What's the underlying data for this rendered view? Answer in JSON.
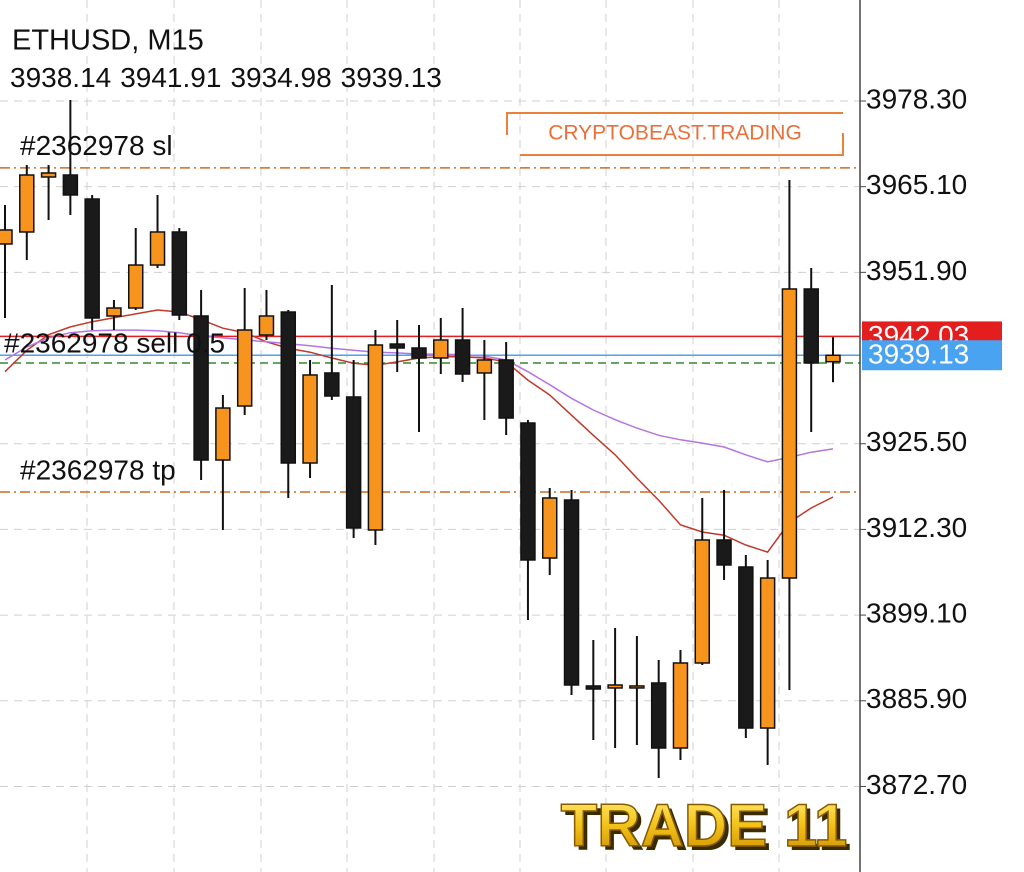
{
  "chart_data": {
    "type": "candlestick",
    "title": "ETHUSD, M15",
    "ylim": [
      3859.52,
      3993.86
    ],
    "yticks": [
      {
        "value": 3978.3,
        "label": "3978.30"
      },
      {
        "value": 3965.1,
        "label": "3965.10"
      },
      {
        "value": 3951.9,
        "label": "3951.90"
      },
      {
        "value": 3925.5,
        "label": "3925.50"
      },
      {
        "value": 3912.3,
        "label": "3912.30"
      },
      {
        "value": 3899.1,
        "label": "3899.10"
      },
      {
        "value": 3885.9,
        "label": "3885.90"
      },
      {
        "value": 3872.7,
        "label": "3872.70"
      }
    ],
    "grid": true,
    "up_color": "#f7941d",
    "down_color": "#1a1a1a",
    "candles": [
      {
        "open": 3956.27,
        "high": 3962.28,
        "low": 3944.87,
        "close": 3958.43
      },
      {
        "open": 3958.12,
        "high": 3968.44,
        "low": 3953.8,
        "close": 3966.9
      },
      {
        "open": 3966.59,
        "high": 3968.44,
        "low": 3959.97,
        "close": 3967.21
      },
      {
        "open": 3966.9,
        "high": 3978.45,
        "low": 3960.74,
        "close": 3963.82
      },
      {
        "open": 3963.2,
        "high": 3963.82,
        "low": 3943.02,
        "close": 3944.87
      },
      {
        "open": 3945.18,
        "high": 3947.64,
        "low": 3943.02,
        "close": 3946.41
      },
      {
        "open": 3946.41,
        "high": 3958.73,
        "low": 3946.1,
        "close": 3953.03
      },
      {
        "open": 3953.03,
        "high": 3963.82,
        "low": 3952.57,
        "close": 3958.12
      },
      {
        "open": 3958.12,
        "high": 3958.73,
        "low": 3944.56,
        "close": 3945.33
      },
      {
        "open": 3945.18,
        "high": 3949.18,
        "low": 3919.91,
        "close": 3922.99
      },
      {
        "open": 3922.99,
        "high": 3933.01,
        "low": 3912.21,
        "close": 3931.0
      },
      {
        "open": 3931.31,
        "high": 3949.49,
        "low": 3929.93,
        "close": 3943.02
      },
      {
        "open": 3942.25,
        "high": 3949.18,
        "low": 3941.48,
        "close": 3945.18
      },
      {
        "open": 3945.79,
        "high": 3946.1,
        "low": 3917.14,
        "close": 3922.53
      },
      {
        "open": 3922.53,
        "high": 3938.4,
        "low": 3920.22,
        "close": 3936.09
      },
      {
        "open": 3936.4,
        "high": 3949.95,
        "low": 3932.24,
        "close": 3932.85
      },
      {
        "open": 3932.7,
        "high": 3938.4,
        "low": 3910.98,
        "close": 3912.52
      },
      {
        "open": 3912.21,
        "high": 3943.02,
        "low": 3909.9,
        "close": 3940.71
      },
      {
        "open": 3940.86,
        "high": 3944.56,
        "low": 3936.55,
        "close": 3940.25
      },
      {
        "open": 3940.25,
        "high": 3943.79,
        "low": 3927.31,
        "close": 3938.71
      },
      {
        "open": 3938.71,
        "high": 3944.87,
        "low": 3936.24,
        "close": 3941.48
      },
      {
        "open": 3941.48,
        "high": 3946.41,
        "low": 3935.01,
        "close": 3936.24
      },
      {
        "open": 3936.4,
        "high": 3941.48,
        "low": 3929.15,
        "close": 3938.4
      },
      {
        "open": 3938.4,
        "high": 3941.17,
        "low": 3926.84,
        "close": 3929.46
      },
      {
        "open": 3928.69,
        "high": 3929.15,
        "low": 3898.34,
        "close": 3907.59
      },
      {
        "open": 3907.89,
        "high": 3918.68,
        "low": 3905.28,
        "close": 3917.14
      },
      {
        "open": 3916.83,
        "high": 3918.37,
        "low": 3886.79,
        "close": 3888.33
      },
      {
        "open": 3888.18,
        "high": 3895.26,
        "low": 3879.86,
        "close": 3887.71
      },
      {
        "open": 3887.87,
        "high": 3897.11,
        "low": 3878.62,
        "close": 3888.33
      },
      {
        "open": 3888.18,
        "high": 3895.88,
        "low": 3879.09,
        "close": 3888.18
      },
      {
        "open": 3888.64,
        "high": 3892.18,
        "low": 3874.0,
        "close": 3878.62
      },
      {
        "open": 3878.62,
        "high": 3893.72,
        "low": 3876.77,
        "close": 3891.72
      },
      {
        "open": 3891.72,
        "high": 3917.14,
        "low": 3891.41,
        "close": 3910.67
      },
      {
        "open": 3910.67,
        "high": 3918.37,
        "low": 3904.51,
        "close": 3906.82
      },
      {
        "open": 3906.51,
        "high": 3908.36,
        "low": 3880.16,
        "close": 3881.7
      },
      {
        "open": 3881.7,
        "high": 3907.59,
        "low": 3876.0,
        "close": 3904.81
      },
      {
        "open": 3904.81,
        "high": 3966.13,
        "low": 3887.56,
        "close": 3949.34
      },
      {
        "open": 3949.34,
        "high": 3952.57,
        "low": 3927.31,
        "close": 3937.94
      },
      {
        "open": 3938.14,
        "high": 3941.91,
        "low": 3934.98,
        "close": 3939.13
      }
    ],
    "series": [
      {
        "color": "#c0392b",
        "values": [
          3936.6,
          3939.9,
          3942.3,
          3943.5,
          3944.3,
          3944.9,
          3945.5,
          3946.1,
          3945.8,
          3944.6,
          3943.3,
          3942.6,
          3941.2,
          3940.2,
          3939.6,
          3938.7,
          3937.9,
          3937.6,
          3938.1,
          3938.7,
          3938.9,
          3938.9,
          3938.7,
          3938.1,
          3935.3,
          3933.0,
          3929.9,
          3926.8,
          3923.8,
          3920.2,
          3916.8,
          3913.0,
          3911.9,
          3911.4,
          3909.9,
          3908.8,
          3913.4,
          3915.6,
          3917.3
        ]
      },
      {
        "color": "#b574e0",
        "values": [
          3938.4,
          3940.4,
          3941.8,
          3942.6,
          3942.9,
          3943.0,
          3943.0,
          3942.9,
          3942.6,
          3942.1,
          3941.8,
          3941.5,
          3941.2,
          3940.9,
          3940.6,
          3940.2,
          3939.9,
          3939.6,
          3939.5,
          3939.3,
          3939.3,
          3939.2,
          3939.0,
          3938.4,
          3936.6,
          3934.6,
          3932.5,
          3930.7,
          3929.2,
          3927.9,
          3926.8,
          3926.1,
          3925.6,
          3925.0,
          3923.8,
          3922.7,
          3923.4,
          3924.2,
          3924.7
        ]
      }
    ],
    "order_levels": [
      {
        "name": "#2362978 sl",
        "value": 3968.0,
        "color": "#d2691e",
        "dash": "10 4 2 4"
      },
      {
        "name": "#2362978 sell 0.5",
        "value": 3937.94,
        "color": "#2e8b2e",
        "dash": "8 5"
      },
      {
        "name": "#2362978 tp",
        "value": 3918.06,
        "color": "#d2691e",
        "dash": "10 4 2 4"
      }
    ],
    "price_lines": [
      {
        "value": 3942.03,
        "color": "#e41e1e"
      },
      {
        "value": 3939.13,
        "color": "#4aa3f0"
      }
    ],
    "annotations": [
      "CRYPTOBEAST.TRADING",
      "TRADE 11"
    ]
  }
}
